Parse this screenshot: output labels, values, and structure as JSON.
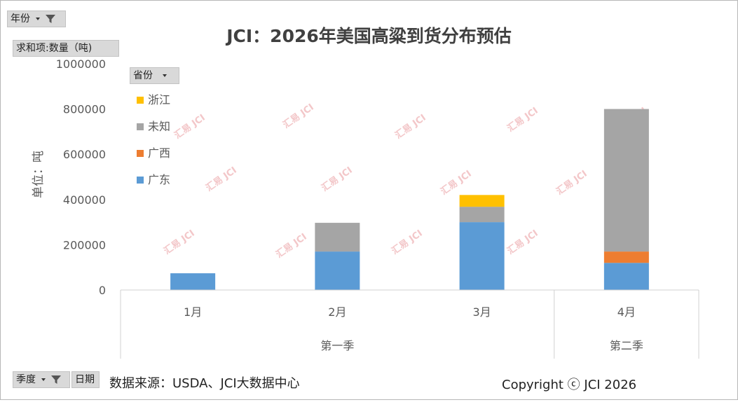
{
  "filters": {
    "year": {
      "label": "年份"
    },
    "value_field": {
      "label": "求和项:数量（吨)"
    },
    "province": {
      "label": "省份"
    },
    "season": {
      "label": "季度"
    },
    "date": {
      "label": "日期"
    }
  },
  "watermark": "汇易 JCI",
  "footer": {
    "source": "数据来源：USDA、JCI大数据中心",
    "copyright": "Copyright ⓒ JCI 2026"
  },
  "chart_data": {
    "type": "bar",
    "stacked": true,
    "title": "JCI：2026年美国高粱到货分布预估",
    "ylabel": "单位：吨",
    "xlabel": "",
    "ylim": [
      0,
      1000000
    ],
    "yticks": [
      "0",
      "200000",
      "400000",
      "600000",
      "800000",
      "1000000"
    ],
    "categories": [
      "1月",
      "2月",
      "3月",
      "4月"
    ],
    "groups": [
      {
        "label": "第一季",
        "categories": [
          "1月",
          "2月",
          "3月"
        ]
      },
      {
        "label": "第二季",
        "categories": [
          "4月"
        ]
      }
    ],
    "legend_position": "top-left",
    "series": [
      {
        "name": "广东",
        "color": "#5b9bd5",
        "values": [
          74000,
          170000,
          300000,
          120000
        ]
      },
      {
        "name": "广西",
        "color": "#ed7d31",
        "values": [
          0,
          0,
          0,
          50000
        ]
      },
      {
        "name": "未知",
        "color": "#a5a5a5",
        "values": [
          0,
          127000,
          68000,
          630000
        ]
      },
      {
        "name": "浙江",
        "color": "#ffc000",
        "values": [
          0,
          0,
          52000,
          0
        ]
      }
    ],
    "grid": false
  }
}
